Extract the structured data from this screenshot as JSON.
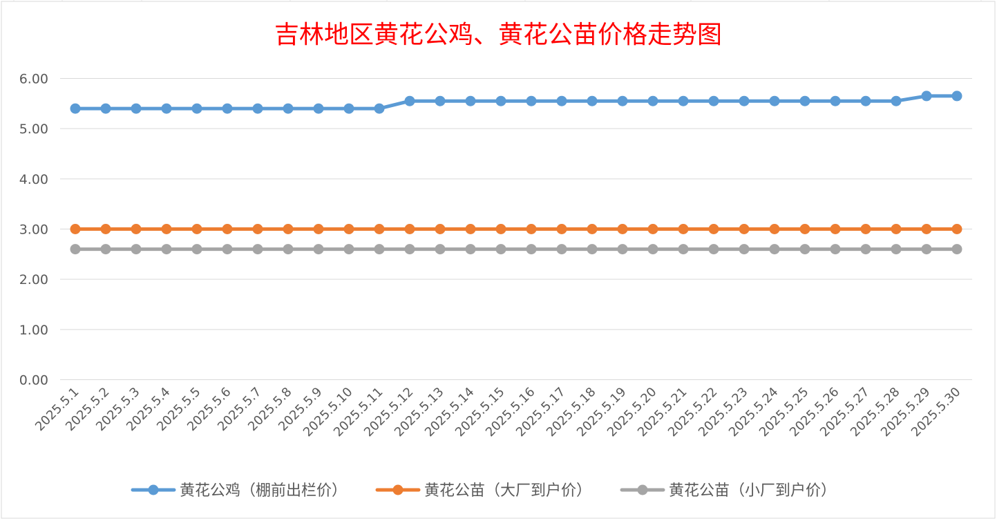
{
  "chart_data": {
    "type": "line",
    "title": "吉林地区黄花公鸡、黄花公苗价格走势图",
    "title_color": "#ff0000",
    "categories": [
      "2025.5.1",
      "2025.5.2",
      "2025.5.3",
      "2025.5.4",
      "2025.5.5",
      "2025.5.6",
      "2025.5.7",
      "2025.5.8",
      "2025.5.9",
      "2025.5.10",
      "2025.5.11",
      "2025.5.12",
      "2025.5.13",
      "2025.5.14",
      "2025.5.15",
      "2025.5.16",
      "2025.5.17",
      "2025.5.18",
      "2025.5.19",
      "2025.5.20",
      "2025.5.21",
      "2025.5.22",
      "2025.5.23",
      "2025.5.24",
      "2025.5.25",
      "2025.5.26",
      "2025.5.27",
      "2025.5.28",
      "2025.5.29",
      "2025.5.30"
    ],
    "ylim": [
      0,
      6
    ],
    "yticks": [
      "0.00",
      "1.00",
      "2.00",
      "3.00",
      "4.00",
      "5.00",
      "6.00"
    ],
    "grid": true,
    "legend_position": "bottom",
    "series": [
      {
        "name": "黄花公鸡（棚前出栏价）",
        "color": "#5b9bd5",
        "values": [
          5.4,
          5.4,
          5.4,
          5.4,
          5.4,
          5.4,
          5.4,
          5.4,
          5.4,
          5.4,
          5.4,
          5.55,
          5.55,
          5.55,
          5.55,
          5.55,
          5.55,
          5.55,
          5.55,
          5.55,
          5.55,
          5.55,
          5.55,
          5.55,
          5.55,
          5.55,
          5.55,
          5.55,
          5.65,
          5.65
        ]
      },
      {
        "name": "黄花公苗（大厂到户价）",
        "color": "#ed7d31",
        "values": [
          3,
          3,
          3,
          3,
          3,
          3,
          3,
          3,
          3,
          3,
          3,
          3,
          3,
          3,
          3,
          3,
          3,
          3,
          3,
          3,
          3,
          3,
          3,
          3,
          3,
          3,
          3,
          3,
          3,
          3
        ]
      },
      {
        "name": "黄花公苗（小厂到户价）",
        "color": "#a5a5a5",
        "values": [
          2.6,
          2.6,
          2.6,
          2.6,
          2.6,
          2.6,
          2.6,
          2.6,
          2.6,
          2.6,
          2.6,
          2.6,
          2.6,
          2.6,
          2.6,
          2.6,
          2.6,
          2.6,
          2.6,
          2.6,
          2.6,
          2.6,
          2.6,
          2.6,
          2.6,
          2.6,
          2.6,
          2.6,
          2.6,
          2.6
        ]
      }
    ]
  }
}
